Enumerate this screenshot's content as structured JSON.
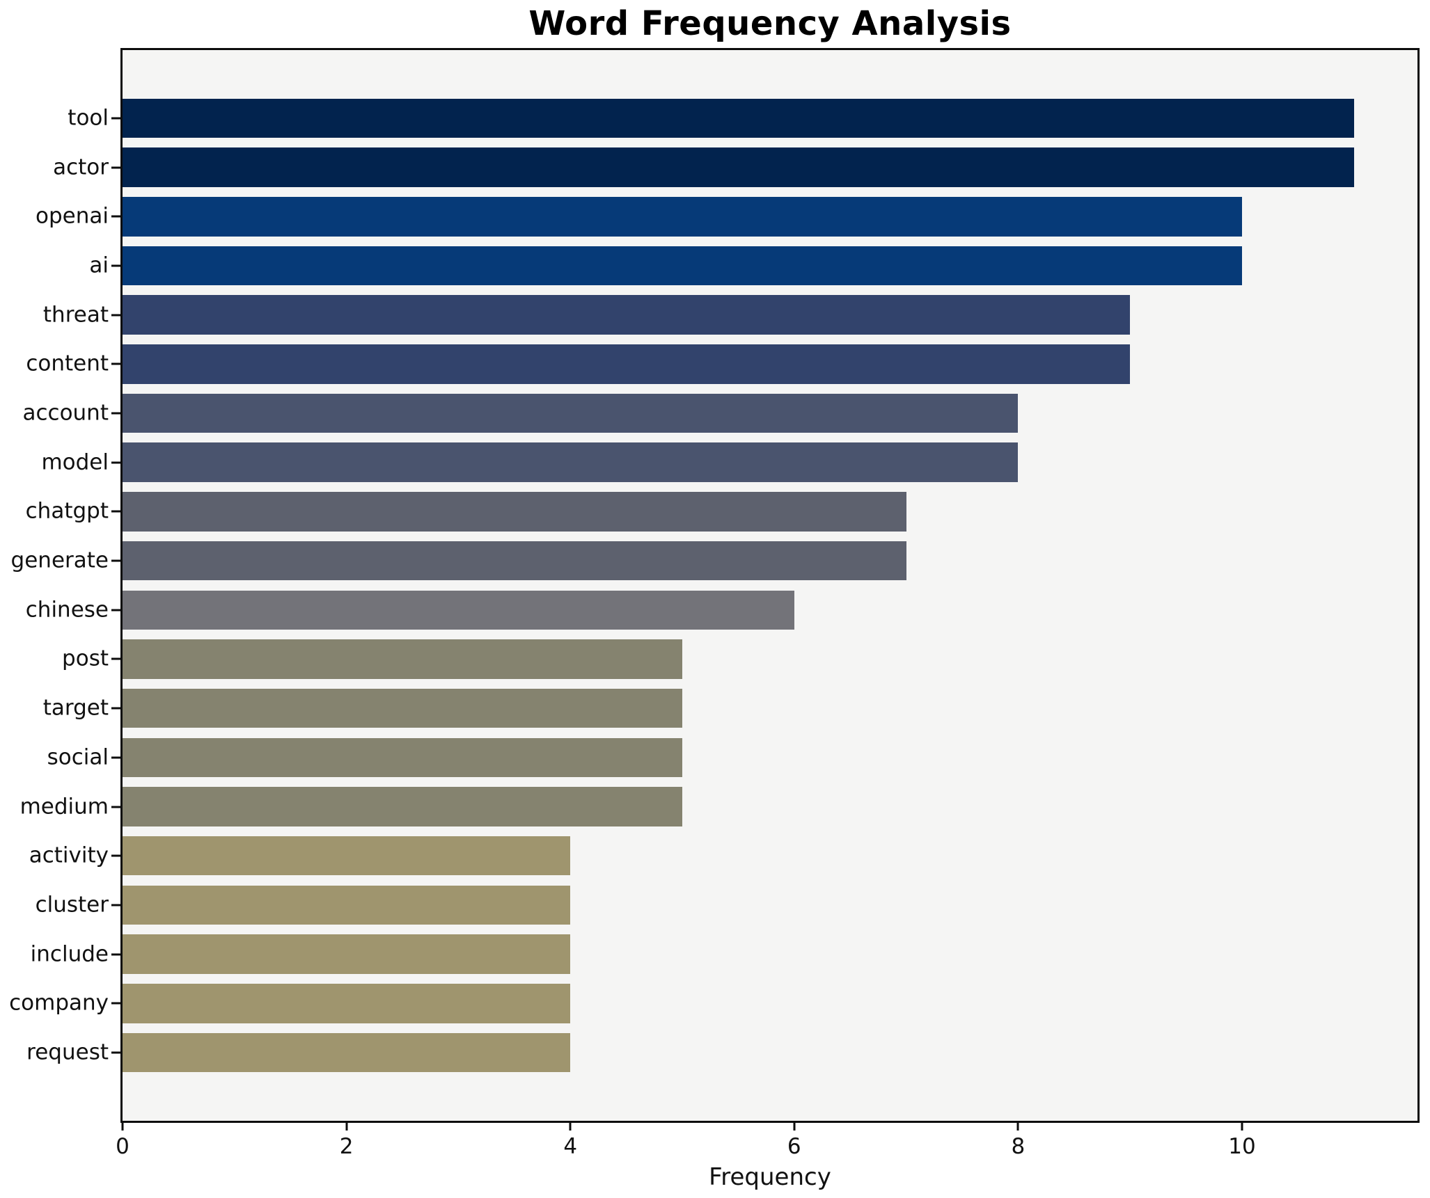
{
  "chart_data": {
    "type": "bar",
    "orientation": "horizontal",
    "title": "Word Frequency Analysis",
    "xlabel": "Frequency",
    "ylabel": "",
    "categories": [
      "tool",
      "actor",
      "openai",
      "ai",
      "threat",
      "content",
      "account",
      "model",
      "chatgpt",
      "generate",
      "chinese",
      "post",
      "target",
      "social",
      "medium",
      "activity",
      "cluster",
      "include",
      "company",
      "request"
    ],
    "values": [
      11,
      11,
      10,
      10,
      9,
      9,
      8,
      8,
      7,
      7,
      6,
      5,
      5,
      5,
      5,
      4,
      4,
      4,
      4,
      4
    ],
    "bar_colors": [
      "#02234e",
      "#02234e",
      "#063a78",
      "#063a78",
      "#32436c",
      "#32436c",
      "#4a546e",
      "#4a546e",
      "#5d616e",
      "#5d616e",
      "#737379",
      "#85836f",
      "#85836f",
      "#85836f",
      "#85836f",
      "#9f956e",
      "#9f956e",
      "#9f956e",
      "#9f956e",
      "#9f956e"
    ],
    "xticks": [
      0,
      2,
      4,
      6,
      8,
      10
    ],
    "xlim": [
      0,
      11.57
    ],
    "grid": false,
    "legend": "none",
    "plot_background": "#f5f5f4",
    "figure_background": "#ffffff",
    "spine_color": "#0d0d0d"
  }
}
